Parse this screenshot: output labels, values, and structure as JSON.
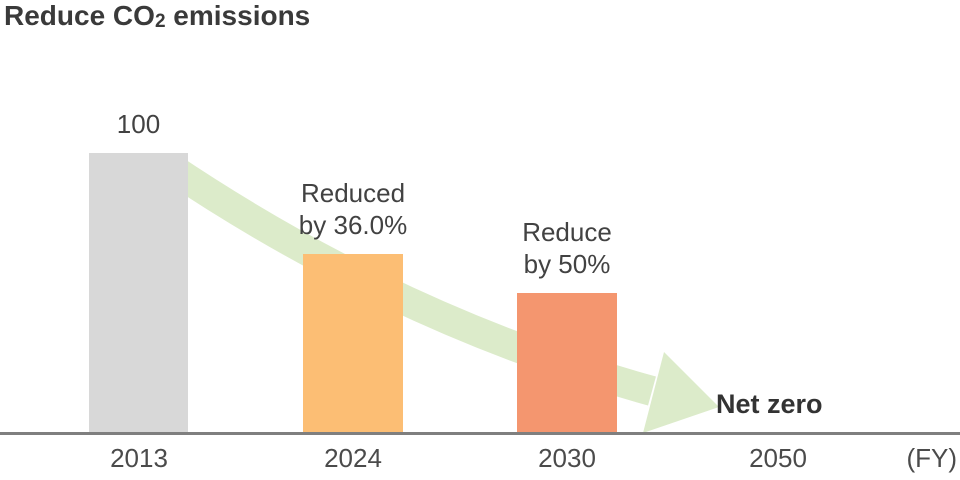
{
  "chart_data": {
    "type": "bar",
    "title": {
      "prefix": "Reduce CO",
      "sub": "2",
      "suffix": " emissions"
    },
    "ylabel": "",
    "xlabel": "",
    "ylim": [
      0,
      100
    ],
    "grid": false,
    "legend": false,
    "categories": [
      "2013",
      "2024",
      "2030",
      "2050"
    ],
    "bars": [
      {
        "category": "2013",
        "value": 100,
        "label": "100",
        "color": "#d8d8d8"
      },
      {
        "category": "2024",
        "value": 64,
        "label": "Reduced\nby 36.0%",
        "color": "#fcbe74"
      },
      {
        "category": "2030",
        "value": 50,
        "label": "Reduce\nby 50%",
        "color": "#f4966f"
      }
    ],
    "end_category": "2050",
    "end_label": "Net zero",
    "axis_unit": "(FY)",
    "axis_line_color": "#7f7f7f",
    "trend_arrow": {
      "color": "#dcebca",
      "direction": "down-right"
    }
  }
}
